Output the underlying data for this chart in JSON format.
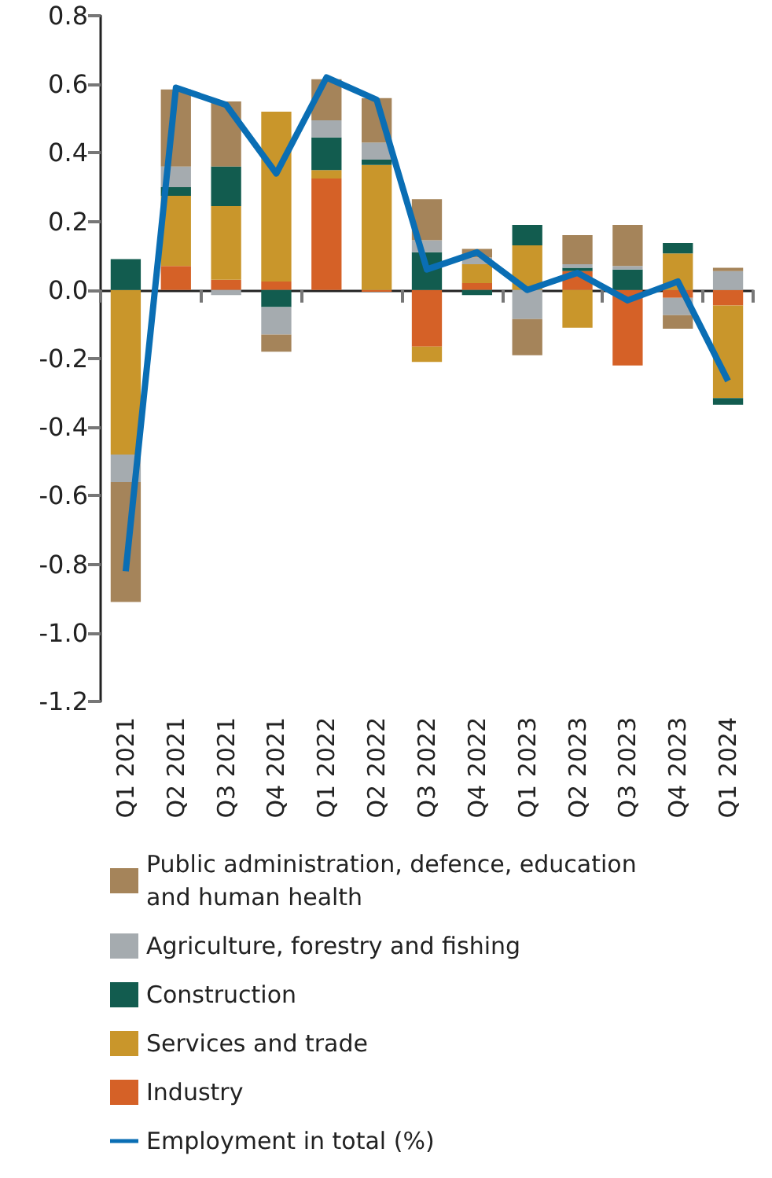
{
  "chart_data": {
    "type": "bar",
    "stacked": true,
    "categories": [
      "Q1 2021",
      "Q2 2021",
      "Q3 2021",
      "Q4 2021",
      "Q1 2022",
      "Q2 2022",
      "Q3 2022",
      "Q4 2022",
      "Q1 2023",
      "Q2 2023",
      "Q3 2023",
      "Q4 2023",
      "Q1 2024"
    ],
    "series": [
      {
        "name": "Industry",
        "color": "#d56127",
        "values": [
          0,
          0.07,
          0.03,
          0.025,
          0.325,
          -0.005,
          -0.165,
          0.02,
          0,
          0.055,
          -0.22,
          -0.023,
          -0.045
        ]
      },
      {
        "name": "Services and trade",
        "color": "#c9962b",
        "values": [
          -0.48,
          0.205,
          0.215,
          0.495,
          0.025,
          0.365,
          -0.045,
          0.055,
          0.13,
          -0.11,
          0,
          0.107,
          -0.27
        ]
      },
      {
        "name": "Construction",
        "color": "#125c4f",
        "values": [
          0.09,
          0.025,
          0.115,
          -0.05,
          0.095,
          0.015,
          0.11,
          -0.015,
          0.06,
          0.01,
          0.06,
          0.03,
          -0.02
        ]
      },
      {
        "name": "Agriculture, forestry and fishing",
        "color": "#a5abaf",
        "values": [
          -0.08,
          0.06,
          -0.015,
          -0.08,
          0.05,
          0.05,
          0.035,
          0.02,
          -0.085,
          0.01,
          0.01,
          -0.05,
          0.055
        ]
      },
      {
        "name": "Public administration, defence, education and human health",
        "color": "#a5845a",
        "values": [
          -0.35,
          0.225,
          0.19,
          -0.05,
          0.12,
          0.13,
          0.12,
          0.025,
          -0.105,
          0.085,
          0.12,
          -0.04,
          0.01
        ]
      },
      {
        "name": "Employment in total (%)",
        "type": "line",
        "color": "#0a6eb4",
        "values": [
          -0.82,
          0.59,
          0.54,
          0.34,
          0.62,
          0.555,
          0.06,
          0.11,
          0,
          0.05,
          -0.03,
          0.025,
          -0.265
        ]
      }
    ],
    "ylim": [
      -1.2,
      0.8
    ],
    "yticks": [
      {
        "value": -1.2,
        "label": "-1.2"
      },
      {
        "value": -1.0,
        "label": "-1.0"
      },
      {
        "value": -0.8,
        "label": "-0.8"
      },
      {
        "value": -0.6,
        "label": "-0.6"
      },
      {
        "value": -0.4,
        "label": "-0.4"
      },
      {
        "value": -0.2,
        "label": "-0.2"
      },
      {
        "value": 0,
        "label": "0.0"
      },
      {
        "value": 0.2,
        "label": "0.2"
      },
      {
        "value": 0.4,
        "label": "0.4"
      },
      {
        "value": 0.6,
        "label": "0.6"
      },
      {
        "value": 0.8,
        "label": "0.8"
      }
    ],
    "legend": "bottom",
    "marker": "none"
  }
}
